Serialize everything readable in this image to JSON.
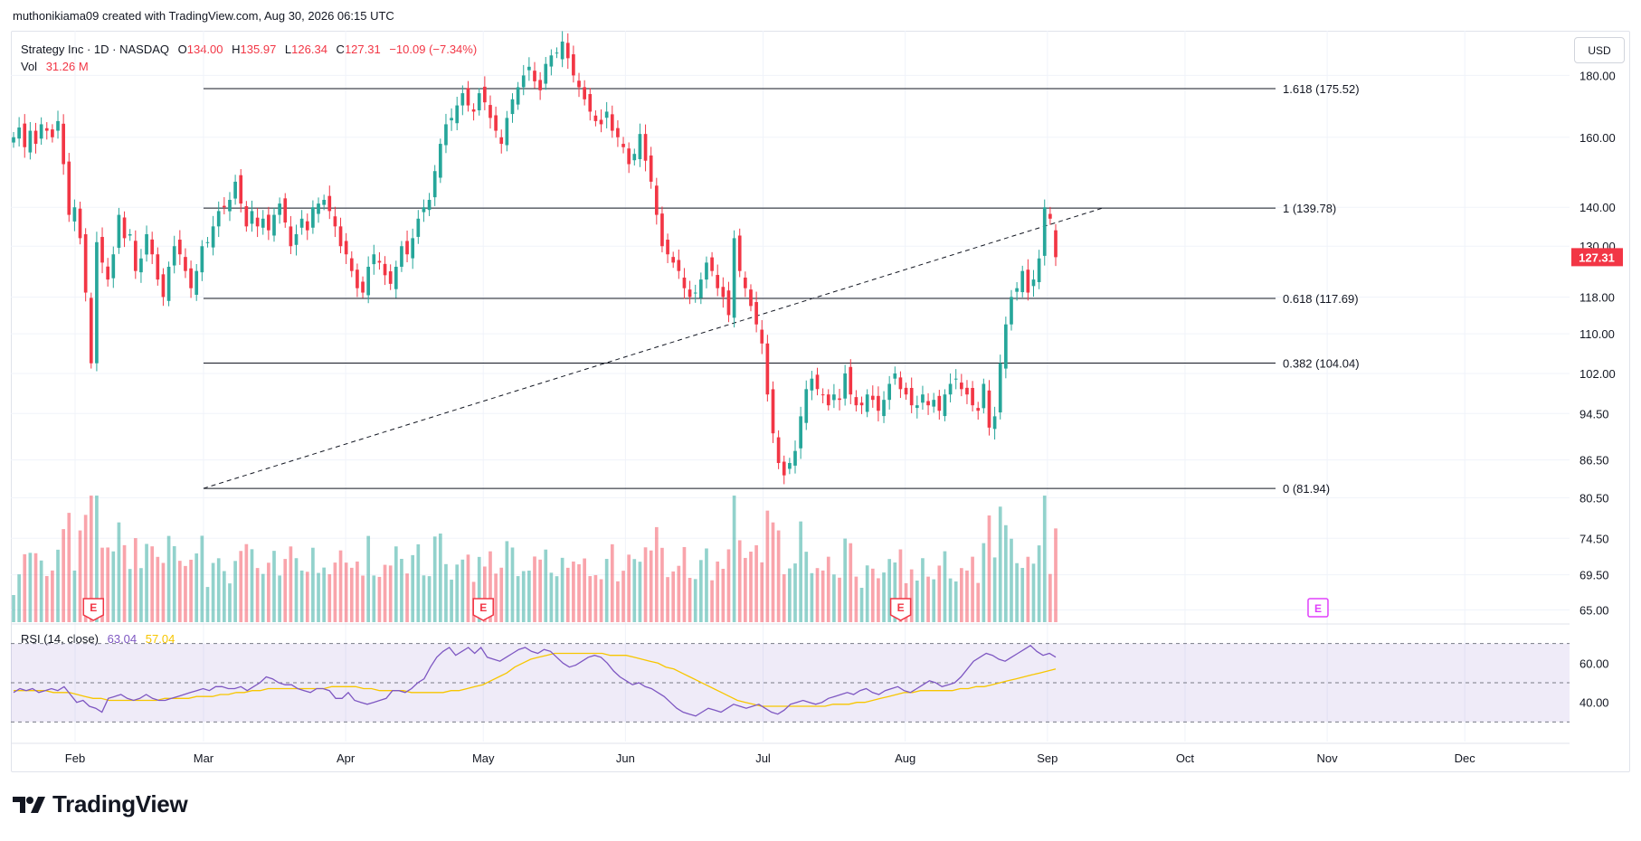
{
  "header": {
    "attribution": "muthonikiama09 created with TradingView.com, Aug 30, 2026 06:15 UTC"
  },
  "currency_button": "USD",
  "legend": {
    "symbol": "Strategy Inc · 1D · NASDAQ",
    "open_label": "O",
    "open": "134.00",
    "high_label": "H",
    "high": "135.97",
    "low_label": "L",
    "low": "126.34",
    "close_label": "C",
    "close": "127.31",
    "change": "−10.09 (−7.34%)",
    "volume_label": "Vol",
    "volume": "31.26 M"
  },
  "rsi_legend": {
    "label": "RSI (14, close)",
    "rsi": "63.04",
    "ma": "57.04"
  },
  "price_badge": "127.31",
  "brand": "TradingView",
  "colors": {
    "up": "#26a69a",
    "down": "#f23645",
    "rsi": "#7e57c2",
    "rsi_ma": "#f7c600",
    "earnings": "#f23645",
    "badge": "#f23645"
  },
  "chart_data": {
    "type": "candlestick",
    "yscale": "log",
    "ylim": [
      63.5,
      196
    ],
    "yticks": [
      "180.00",
      "160.00",
      "140.00",
      "130.00",
      "118.00",
      "110.00",
      "102.00",
      "94.50",
      "86.50",
      "80.50",
      "74.50",
      "69.50",
      "65.00"
    ],
    "x_labels": [
      "Feb",
      "Mar",
      "Apr",
      "May",
      "Jun",
      "Jul",
      "Aug",
      "Sep",
      "Oct",
      "Nov",
      "Dec"
    ],
    "fibonacci": [
      {
        "label": "1.618 (175.52)",
        "value": 175.52
      },
      {
        "label": "1 (139.78)",
        "value": 139.78
      },
      {
        "label": "0.618 (117.69)",
        "value": 117.69
      },
      {
        "label": "0.382 (104.04)",
        "value": 104.04
      },
      {
        "label": "0 (81.94)",
        "value": 81.94
      }
    ],
    "trendline": {
      "from": {
        "date": "Mar 1",
        "value": 81.94
      },
      "to": {
        "date": "Sep 13",
        "value": 139.78
      }
    },
    "closes": [
      160,
      163,
      157,
      162,
      158,
      164,
      162,
      160,
      165,
      152,
      138,
      140,
      132,
      119,
      104,
      131,
      126,
      122,
      128,
      138,
      132,
      133,
      124,
      127,
      133,
      128,
      122,
      118,
      125,
      130,
      128,
      124,
      120,
      124,
      130,
      131,
      135,
      139,
      140,
      142,
      147,
      141,
      135,
      139,
      135,
      137,
      134,
      138,
      141,
      136,
      130,
      133,
      137,
      134,
      140,
      141,
      142,
      139,
      135,
      130,
      128,
      124,
      120,
      119,
      125,
      128,
      126,
      123,
      121,
      125,
      130,
      128,
      132,
      137,
      140,
      142,
      150,
      158,
      164,
      166,
      170,
      174,
      170,
      168,
      174,
      171,
      166,
      162,
      158,
      166,
      172,
      176,
      180,
      183,
      178,
      175,
      184,
      187,
      188,
      192,
      186,
      180,
      176,
      172,
      168,
      165,
      164,
      168,
      162,
      160,
      157,
      152,
      155,
      161,
      153,
      147,
      138,
      130,
      128,
      126,
      124,
      120,
      118,
      119,
      122,
      126,
      124,
      120,
      118,
      114,
      132,
      124,
      120,
      116,
      112,
      108,
      98,
      91,
      86,
      84,
      86,
      88,
      94,
      99,
      101,
      99,
      98,
      96,
      98,
      97,
      102,
      98,
      96,
      96,
      98,
      97,
      95,
      97,
      100,
      102,
      99,
      98,
      96,
      96,
      98,
      96,
      97,
      95,
      98,
      100,
      101,
      99,
      98,
      96,
      95,
      100,
      92,
      94,
      104,
      112,
      118,
      120,
      124,
      119,
      122,
      127,
      140,
      137,
      127.31
    ],
    "rsi": [
      45,
      47,
      46,
      47,
      45,
      46,
      47,
      46,
      48,
      44,
      40,
      41,
      38,
      37,
      35,
      42,
      43,
      44,
      42,
      41,
      42,
      44,
      42,
      41,
      41,
      42,
      43,
      44,
      45,
      46,
      47,
      46,
      48,
      48,
      47,
      47,
      48,
      46,
      48,
      50,
      53,
      52,
      50,
      49,
      49,
      47,
      46,
      45,
      47,
      47,
      46,
      42,
      42,
      45,
      41,
      40,
      39,
      40,
      41,
      42,
      46,
      46,
      45,
      47,
      50,
      52,
      58,
      63,
      66,
      68,
      64,
      66,
      68,
      65,
      68,
      63,
      62,
      61,
      63,
      65,
      67,
      68,
      66,
      65,
      67,
      66,
      63,
      60,
      58,
      59,
      61,
      63,
      64,
      63,
      60,
      56,
      53,
      51,
      49,
      50,
      48,
      47,
      45,
      43,
      40,
      37,
      35,
      34,
      33,
      35,
      37,
      36,
      35,
      37,
      39,
      38,
      37,
      38,
      39,
      37,
      35,
      34,
      36,
      39,
      40,
      41,
      40,
      39,
      40,
      42,
      43,
      44,
      45,
      44,
      46,
      47,
      45,
      44,
      46,
      47,
      48,
      46,
      45,
      47,
      49,
      51,
      50,
      48,
      49,
      50,
      53,
      57,
      61,
      63,
      65,
      64,
      62,
      61,
      63,
      65,
      67,
      69,
      66,
      64,
      65,
      63.04
    ],
    "rsi_ma": [
      46,
      46,
      46,
      46,
      46,
      45,
      45,
      45,
      44,
      43,
      42,
      42,
      41,
      41,
      41,
      41,
      41,
      41,
      41,
      42,
      42,
      42,
      42,
      43,
      43,
      43,
      44,
      44,
      45,
      45,
      46,
      46,
      47,
      47,
      47,
      47,
      47,
      47,
      47,
      47,
      48,
      48,
      48,
      48,
      47,
      47,
      46,
      46,
      46,
      46,
      45,
      45,
      45,
      45,
      45,
      46,
      46,
      47,
      48,
      49,
      51,
      53,
      55,
      58,
      60,
      62,
      63,
      64,
      65,
      65,
      65,
      65,
      65,
      65,
      65,
      64,
      64,
      64,
      63,
      62,
      61,
      60,
      58,
      57,
      55,
      53,
      51,
      49,
      47,
      45,
      43,
      41,
      40,
      39,
      38,
      38,
      38,
      38,
      38,
      38,
      38,
      38,
      38,
      39,
      39,
      39,
      40,
      40,
      41,
      42,
      43,
      44,
      45,
      45,
      46,
      46,
      46,
      46,
      46,
      47,
      47,
      48,
      48,
      49,
      50,
      51,
      52,
      53,
      54,
      55,
      56,
      57.04
    ],
    "rsi_levels": [
      70,
      50,
      30
    ],
    "rsi_ticks": [
      "60.00",
      "40.00"
    ],
    "earnings_markers": [
      {
        "date": "Feb 5",
        "label": "E",
        "type": "past"
      },
      {
        "date": "May 1",
        "label": "E",
        "type": "past"
      },
      {
        "date": "Jul 31",
        "label": "E",
        "type": "past"
      },
      {
        "date": "Oct 30",
        "label": "E",
        "type": "upcoming"
      }
    ]
  }
}
